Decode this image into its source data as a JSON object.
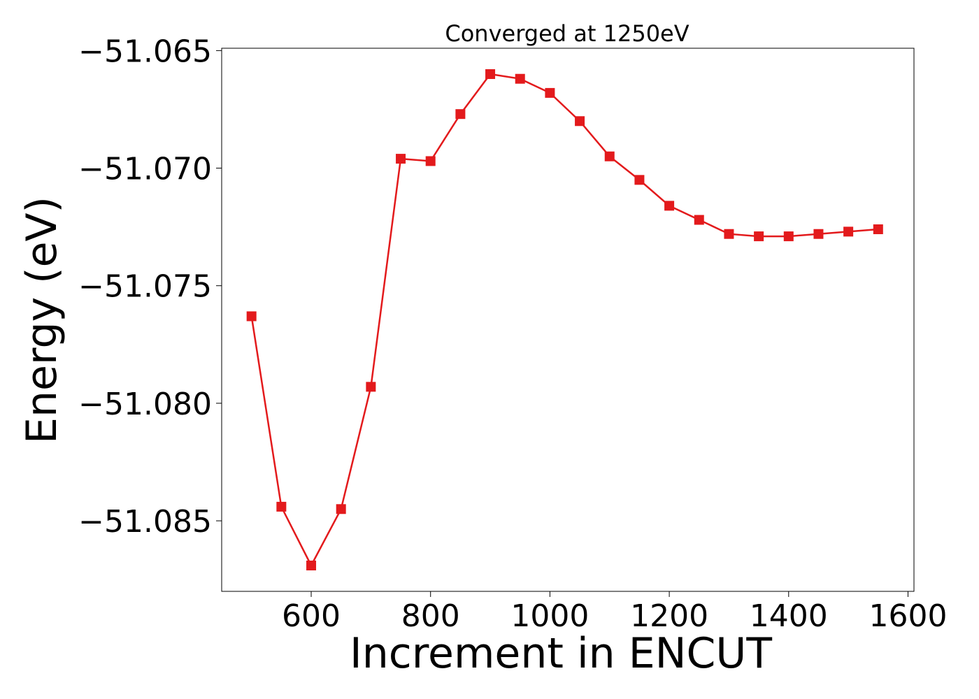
{
  "chart_data": {
    "type": "line",
    "title": "Converged at 1250eV",
    "xlabel": "Increment in ENCUT",
    "ylabel": "Energy (eV)",
    "xlim": [
      450,
      1610
    ],
    "ylim": [
      -51.088,
      -51.0649
    ],
    "x_ticks": [
      600,
      800,
      1000,
      1200,
      1400,
      1600
    ],
    "x_tick_labels": [
      "600",
      "800",
      "1000",
      "1200",
      "1400",
      "1600"
    ],
    "y_ticks": [
      -51.085,
      -51.08,
      -51.075,
      -51.07,
      -51.065
    ],
    "y_tick_labels": [
      "−51.085",
      "−51.080",
      "−51.075",
      "−51.070",
      "−51.065"
    ],
    "grid": false,
    "series": [
      {
        "color": "#e31a1c",
        "marker": "square",
        "x": [
          500,
          550,
          600,
          650,
          700,
          750,
          800,
          850,
          900,
          950,
          1000,
          1050,
          1100,
          1150,
          1200,
          1250,
          1300,
          1350,
          1400,
          1450,
          1500,
          1550
        ],
        "y": [
          -51.0763,
          -51.0844,
          -51.0869,
          -51.0845,
          -51.0793,
          -51.0696,
          -51.0697,
          -51.0677,
          -51.066,
          -51.0662,
          -51.0668,
          -51.068,
          -51.0695,
          -51.0705,
          -51.0716,
          -51.0722,
          -51.0728,
          -51.0729,
          -51.0729,
          -51.0728,
          -51.0727,
          -51.0726
        ]
      }
    ]
  }
}
